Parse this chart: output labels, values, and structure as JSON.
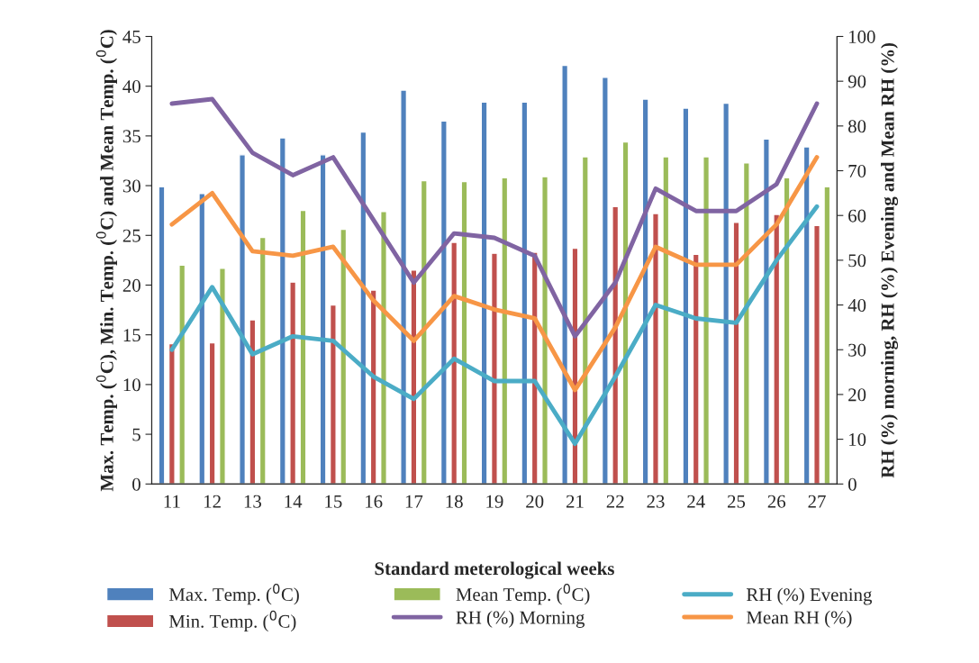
{
  "chart_data": {
    "type": "bar",
    "xlabel": "Standard meterological weeks",
    "ylabel": "Max. Temp. ($^{0}$C), Min. Temp. ($^{0}$C) and Mean Temp. ($^{0}$C)",
    "y2label": "RH (%) morning, RH (%) Evening and Mean RH (%)",
    "categories": [
      "11",
      "12",
      "13",
      "14",
      "15",
      "16",
      "17",
      "18",
      "19",
      "20",
      "21",
      "22",
      "23",
      "24",
      "25",
      "26",
      "27"
    ],
    "series": [
      {
        "name": "Max. Temp. ($^{0}$C)",
        "color": "#4f81bd",
        "values": [
          29.9,
          29.2,
          33.1,
          34.8,
          33.1,
          35.4,
          39.6,
          36.5,
          38.4,
          38.4,
          42.1,
          40.9,
          38.7,
          37.8,
          38.3,
          34.7,
          33.9
        ]
      },
      {
        "name": "Min. Temp. ($^{0}$C)",
        "color": "#c0504d",
        "values": [
          14.1,
          14.2,
          16.5,
          20.3,
          18.0,
          19.5,
          21.5,
          24.3,
          23.2,
          23.3,
          23.7,
          27.9,
          27.2,
          23.1,
          26.3,
          27.1,
          26.0
        ]
      },
      {
        "name": "Mean Temp. ($^{0}$C)",
        "color": "#9bbb59",
        "values": [
          22.0,
          21.7,
          24.8,
          27.5,
          25.6,
          27.4,
          30.5,
          30.4,
          30.8,
          30.9,
          32.9,
          34.4,
          32.9,
          32.9,
          32.3,
          30.8,
          29.9
        ]
      },
      {
        "name": "RH (%) Morning",
        "type": "line",
        "axis": "y2",
        "color": "#8064a2",
        "values": [
          85,
          86,
          74,
          69,
          73,
          59,
          45,
          56,
          55,
          51,
          33,
          45,
          66,
          61,
          61,
          67,
          85
        ]
      },
      {
        "name": "RH (%) Evening",
        "type": "line",
        "axis": "y2",
        "color": "#4bacc6",
        "values": [
          30,
          44,
          29,
          33,
          32,
          24,
          19,
          28,
          23,
          23,
          9,
          24,
          40,
          37,
          36,
          50,
          62
        ]
      },
      {
        "name": "Mean RH (%)",
        "type": "line",
        "axis": "y2",
        "color": "#f79646",
        "values": [
          58,
          65,
          52,
          51,
          53,
          41,
          32,
          42,
          39,
          37,
          21,
          35,
          53,
          49,
          49,
          58,
          73
        ]
      }
    ],
    "ylim": [
      0,
      45
    ],
    "yticks": [
      0,
      5,
      10,
      15,
      20,
      25,
      30,
      35,
      40,
      45
    ],
    "y2lim": [
      0,
      100
    ],
    "y2ticks": [
      0,
      10,
      20,
      30,
      40,
      50,
      60,
      70,
      80,
      90,
      100
    ],
    "legend": "bottom",
    "grid": false,
    "marker": "none",
    "line_style": "solid"
  }
}
